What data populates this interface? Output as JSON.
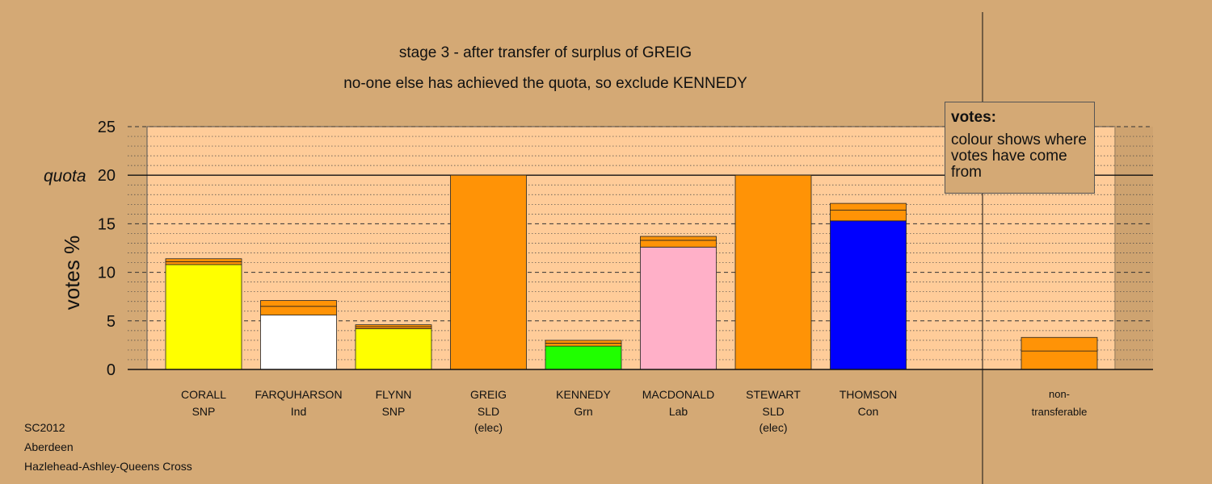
{
  "chart_data": {
    "type": "bar",
    "title": "stage 3 - after transfer of surplus of GREIG",
    "subtitle": "no-one else has achieved the quota, so exclude KENNEDY",
    "ylabel": "votes %",
    "ylim": [
      0,
      25
    ],
    "yticks": [
      "0",
      "5",
      "10",
      "15",
      "20",
      "25"
    ],
    "quota": {
      "label": "quota",
      "value": 20
    },
    "colors": {
      "SNP": "#ffff00",
      "Ind": "#ffffff",
      "SLD": "#ff9306",
      "Grn": "#20ff00",
      "Lab": "#ffb0c8",
      "Con": "#0000ff",
      "transfer": "#ff9306",
      "plot_bg": "#ffcc99",
      "page_bg": "#d4a975"
    },
    "categories": [
      {
        "name": "CORALL",
        "party": "SNP",
        "note": "",
        "segments": [
          {
            "value": 10.8,
            "color": "#ffff00"
          },
          {
            "value": 0.3,
            "color": "#ff9306"
          },
          {
            "value": 0.3,
            "color": "#ff9306"
          }
        ]
      },
      {
        "name": "FARQUHARSON",
        "party": "Ind",
        "note": "",
        "segments": [
          {
            "value": 5.6,
            "color": "#ffffff"
          },
          {
            "value": 0.9,
            "color": "#ff9306"
          },
          {
            "value": 0.6,
            "color": "#ff9306"
          }
        ]
      },
      {
        "name": "FLYNN",
        "party": "SNP",
        "note": "",
        "segments": [
          {
            "value": 4.2,
            "color": "#ffff00"
          },
          {
            "value": 0.2,
            "color": "#ff9306"
          },
          {
            "value": 0.2,
            "color": "#ff9306"
          }
        ]
      },
      {
        "name": "GREIG",
        "party": "SLD",
        "note": "(elec)",
        "segments": [
          {
            "value": 20.0,
            "color": "#ff9306"
          }
        ]
      },
      {
        "name": "KENNEDY",
        "party": "Grn",
        "note": "",
        "segments": [
          {
            "value": 2.4,
            "color": "#20ff00"
          },
          {
            "value": 0.3,
            "color": "#ff9306"
          },
          {
            "value": 0.3,
            "color": "#ff9306"
          }
        ]
      },
      {
        "name": "MACDONALD",
        "party": "Lab",
        "note": "",
        "segments": [
          {
            "value": 12.6,
            "color": "#ffb0c8"
          },
          {
            "value": 0.7,
            "color": "#ff9306"
          },
          {
            "value": 0.4,
            "color": "#ff9306"
          }
        ]
      },
      {
        "name": "STEWART",
        "party": "SLD",
        "note": "(elec)",
        "segments": [
          {
            "value": 20.0,
            "color": "#ff9306"
          }
        ]
      },
      {
        "name": "THOMSON",
        "party": "Con",
        "note": "",
        "segments": [
          {
            "value": 15.3,
            "color": "#0000ff"
          },
          {
            "value": 1.1,
            "color": "#ff9306"
          },
          {
            "value": 0.7,
            "color": "#ff9306"
          }
        ]
      }
    ],
    "nontransferable": {
      "label1": "non-",
      "label2": "transferable",
      "segments": [
        {
          "value": 1.9,
          "color": "#ff9306"
        },
        {
          "value": 1.4,
          "color": "#ff9306"
        }
      ]
    },
    "legend_placement": "top-right"
  },
  "legend": {
    "title": "votes:",
    "text": "colour shows where votes have come from"
  },
  "footer": {
    "line1": "SC2012",
    "line2": "Aberdeen",
    "line3": "Hazlehead-Ashley-Queens Cross"
  }
}
